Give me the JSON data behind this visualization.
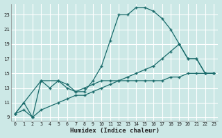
{
  "xlabel": "Humidex (Indice chaleur)",
  "bg_color": "#cce8e6",
  "grid_color": "#ffffff",
  "line_color": "#1a6b6b",
  "xlim": [
    -0.5,
    23.5
  ],
  "ylim": [
    8.5,
    24.5
  ],
  "xticks": [
    0,
    1,
    2,
    3,
    4,
    5,
    6,
    7,
    8,
    9,
    10,
    11,
    12,
    13,
    14,
    15,
    16,
    17,
    18,
    19,
    20,
    21,
    22,
    23
  ],
  "yticks": [
    9,
    11,
    13,
    15,
    17,
    19,
    21,
    23
  ],
  "line1_x": [
    0,
    1,
    2,
    3,
    4,
    5,
    6,
    7,
    8,
    9,
    10,
    11,
    12,
    13,
    14,
    15,
    16,
    17,
    18,
    19,
    20,
    21,
    22,
    23
  ],
  "line1_y": [
    9.5,
    11.0,
    9.0,
    14.0,
    13.0,
    14.0,
    13.0,
    12.5,
    12.5,
    14.0,
    16.0,
    19.5,
    23.0,
    23.0,
    24.0,
    24.0,
    23.5,
    22.5,
    21.0,
    19.0,
    17.0,
    17.0,
    15.0,
    15.0
  ],
  "line2_x": [
    0,
    3,
    5,
    6,
    7,
    8,
    9,
    10,
    11,
    12,
    13,
    14,
    15,
    16,
    17,
    18,
    19,
    20,
    21,
    22,
    23
  ],
  "line2_y": [
    9.5,
    14.0,
    14.0,
    13.5,
    12.5,
    13.0,
    13.5,
    14.0,
    14.0,
    14.0,
    14.0,
    14.0,
    14.0,
    14.0,
    14.0,
    14.5,
    14.5,
    15.0,
    15.0,
    15.0,
    15.0
  ],
  "line3_x": [
    0,
    1,
    2,
    3,
    5,
    6,
    7,
    8,
    9,
    10,
    11,
    12,
    13,
    14,
    15,
    16,
    17,
    18,
    19,
    20,
    21,
    22,
    23
  ],
  "line3_y": [
    9.5,
    10.0,
    9.0,
    10.0,
    11.0,
    11.5,
    12.0,
    12.0,
    12.5,
    13.0,
    13.5,
    14.0,
    14.5,
    15.0,
    15.5,
    16.0,
    17.0,
    18.0,
    19.0,
    17.0,
    17.0,
    15.0,
    15.0
  ]
}
